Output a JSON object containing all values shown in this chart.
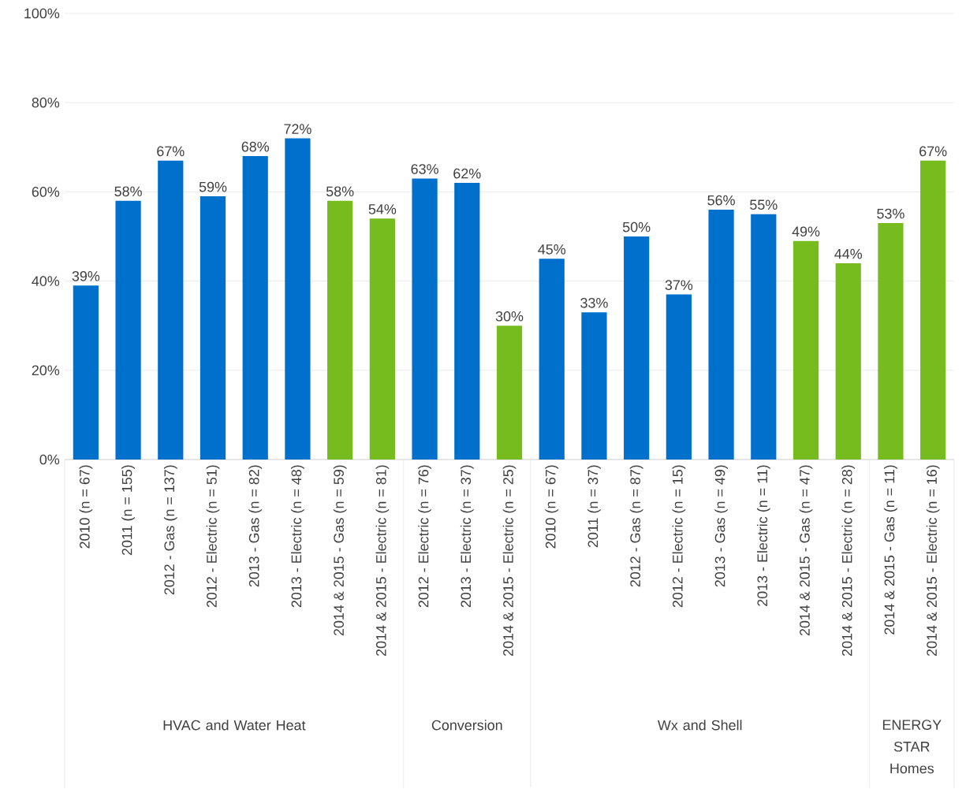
{
  "chart_data": {
    "type": "bar",
    "categories": [
      "2010 (n = 67)",
      "2011 (n = 155)",
      "2012 - Gas (n = 137)",
      "2012 - Electric (n = 51)",
      "2013 - Gas (n = 82)",
      "2013 - Electric (n = 48)",
      "2014 & 2015 - Gas (n = 59)",
      "2014 & 2015 - Electric (n = 81)",
      "2012 - Electric (n = 76)",
      "2013 - Electric (n = 37)",
      "2014 & 2015 - Electric (n = 25)",
      "2010 (n = 67)",
      "2011 (n = 37)",
      "2012 - Gas (n = 87)",
      "2012 - Electric (n = 15)",
      "2013 - Gas (n = 49)",
      "2013 - Electric (n = 11)",
      "2014 & 2015 - Gas (n = 47)",
      "2014 & 2015 - Electric (n = 28)",
      "2014 & 2015 - Gas (n = 11)",
      "2014 & 2015 - Electric (n = 16)"
    ],
    "values": [
      39,
      58,
      67,
      59,
      68,
      72,
      58,
      54,
      63,
      62,
      30,
      45,
      33,
      50,
      37,
      56,
      55,
      49,
      44,
      53,
      67
    ],
    "value_labels": [
      "39%",
      "58%",
      "67%",
      "59%",
      "68%",
      "72%",
      "58%",
      "54%",
      "63%",
      "62%",
      "30%",
      "45%",
      "33%",
      "50%",
      "37%",
      "56%",
      "55%",
      "49%",
      "44%",
      "53%",
      "67%"
    ],
    "colors": [
      "#0070cd",
      "#0070cd",
      "#0070cd",
      "#0070cd",
      "#0070cd",
      "#0070cd",
      "#77bc1f",
      "#77bc1f",
      "#0070cd",
      "#0070cd",
      "#77bc1f",
      "#0070cd",
      "#0070cd",
      "#0070cd",
      "#0070cd",
      "#0070cd",
      "#0070cd",
      "#77bc1f",
      "#77bc1f",
      "#77bc1f",
      "#77bc1f"
    ],
    "annotations": [
      "HVAC and Water Heat",
      "Conversion",
      "Wx and Shell",
      "ENERGY STAR Homes"
    ],
    "ylim": [
      0,
      100
    ],
    "yticks": [
      {
        "value": 0,
        "label": "0%"
      },
      {
        "value": 20,
        "label": "20%"
      },
      {
        "value": 40,
        "label": "40%"
      },
      {
        "value": 60,
        "label": "60%"
      },
      {
        "value": 80,
        "label": "80%"
      },
      {
        "value": 100,
        "label": "100%"
      }
    ],
    "grid": "y"
  }
}
